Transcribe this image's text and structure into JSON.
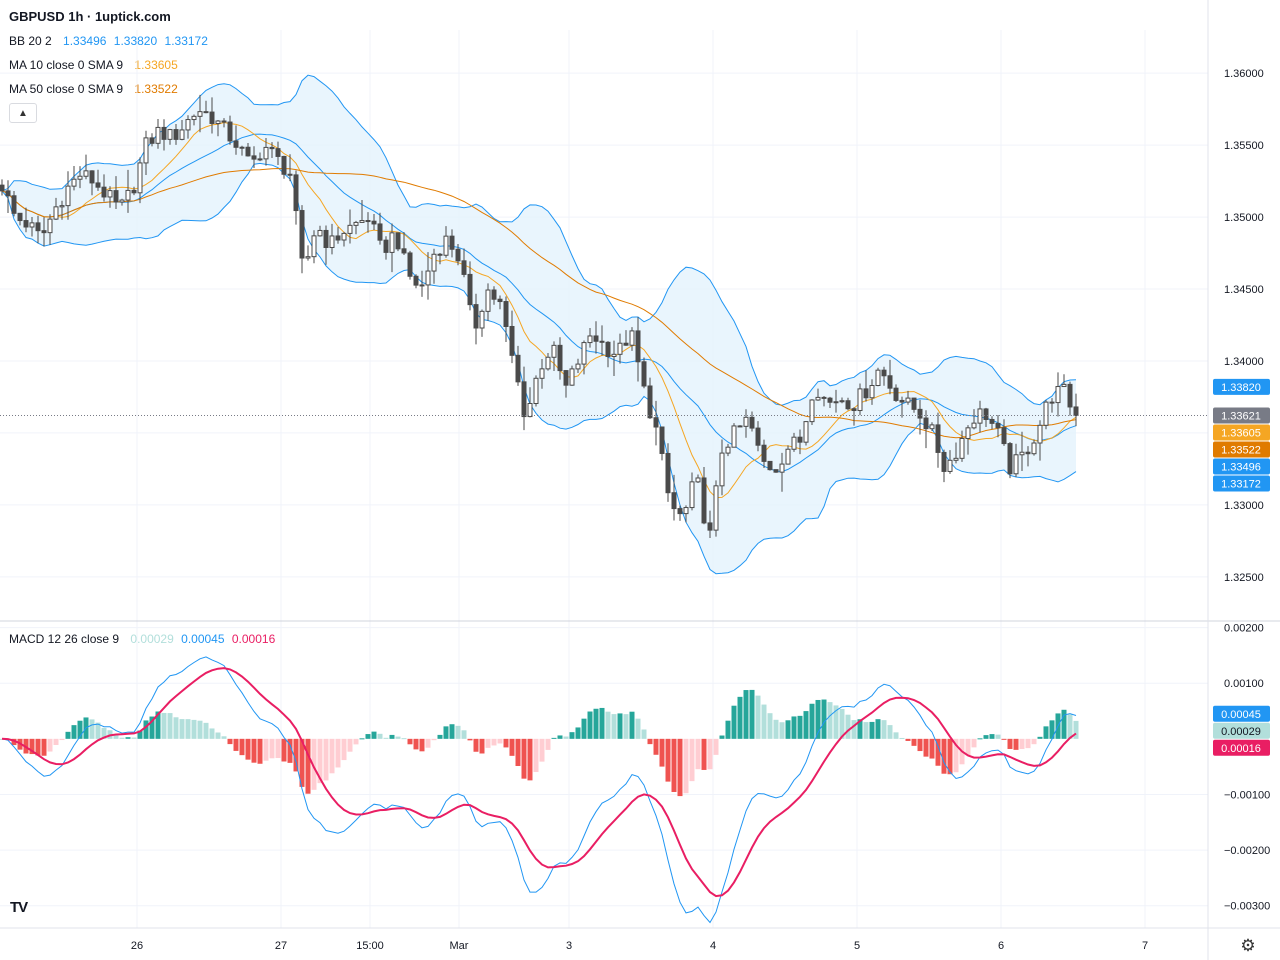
{
  "header": {
    "title": "GBPUSD 1h · 1uptick.com"
  },
  "legends": {
    "bb": {
      "label": "BB 20 2",
      "values": [
        "1.33496",
        "1.33820",
        "1.33172"
      ]
    },
    "ma10": {
      "label": "MA 10 close 0 SMA 9",
      "value": "1.33605"
    },
    "ma50": {
      "label": "MA 50 close 0 SMA 9",
      "value": "1.33522"
    },
    "macd": {
      "label": "MACD 12 26 close 9",
      "values": [
        "0.00029",
        "0.00045",
        "0.00016"
      ]
    }
  },
  "colors": {
    "up": "#26a69a",
    "down": "#ef5350",
    "candle": "#4a4a4a",
    "bb": "#2196f3",
    "bb_fill": "#e3f2fd",
    "ma10": "#f5a623",
    "ma50": "#e07b00",
    "macd_line": "#2196f3",
    "signal_line": "#e91e63",
    "hist_up": "#26a69a",
    "hist_up_light": "#b2dfdb",
    "hist_down": "#ef5350",
    "hist_down_light": "#ffcdd2"
  },
  "icons": {
    "collapse": "chevron-up-icon",
    "settings": "gear-icon",
    "logo": "tradingview-logo"
  },
  "chart_data": {
    "type": "candlestick",
    "symbol": "GBPUSD",
    "timeframe": "1h",
    "price_axis": {
      "ticks": [
        "1.36000",
        "1.35500",
        "1.35000",
        "1.34500",
        "1.34000",
        "1.33500",
        "1.33000",
        "1.32500"
      ],
      "range": [
        1.322,
        1.363
      ]
    },
    "macd_axis": {
      "ticks": [
        "0.00200",
        "0.00100",
        "−0.00100",
        "−0.00200",
        "−0.00300"
      ],
      "range": [
        -0.0034,
        0.0021
      ]
    },
    "x_ticks": [
      "26",
      "27",
      "15:00",
      "Mar",
      "3",
      "4",
      "5",
      "6",
      "7"
    ],
    "price_labels": [
      {
        "value": 1.3382,
        "text": "1.33820",
        "color": "#2196f3"
      },
      {
        "value": 1.33621,
        "text": "1.33621",
        "color": "#787b86"
      },
      {
        "value": 1.33605,
        "text": "1.33605",
        "color": "#f5a623"
      },
      {
        "value": 1.33522,
        "text": "1.33522",
        "color": "#e07b00"
      },
      {
        "value": 1.33496,
        "text": "1.33496",
        "color": "#2196f3"
      },
      {
        "value": 1.33172,
        "text": "1.33172",
        "color": "#2196f3"
      }
    ],
    "macd_labels": [
      {
        "value": 0.00045,
        "text": "0.00045",
        "color": "#2196f3"
      },
      {
        "value": 0.00029,
        "text": "0.00029",
        "color": "#b2dfdb"
      },
      {
        "value": 0.00016,
        "text": "0.00016",
        "color": "#e91e63"
      }
    ],
    "close_path": [
      1.3522,
      1.35,
      1.3495,
      1.3485,
      1.3505,
      1.352,
      1.353,
      1.3525,
      1.3515,
      1.3505,
      1.352,
      1.355,
      1.356,
      1.3555,
      1.3565,
      1.3575,
      1.357,
      1.356,
      1.355,
      1.3535,
      1.355,
      1.354,
      1.353,
      1.346,
      1.3495,
      1.348,
      1.349,
      1.3495,
      1.35,
      1.3475,
      1.349,
      1.346,
      1.345,
      1.3475,
      1.3485,
      1.347,
      1.342,
      1.345,
      1.344,
      1.34,
      1.336,
      1.3395,
      1.341,
      1.338,
      1.34,
      1.342,
      1.341,
      1.3405,
      1.342,
      1.338,
      1.335,
      1.33,
      1.329,
      1.332,
      1.3275,
      1.334,
      1.335,
      1.336,
      1.333,
      1.3325,
      1.334,
      1.3345,
      1.3385,
      1.337,
      1.3375,
      1.337,
      1.338,
      1.3395,
      1.338,
      1.337,
      1.3365,
      1.335,
      1.3325,
      1.334,
      1.336,
      1.3365,
      1.335,
      1.3325,
      1.3335,
      1.335,
      1.3375,
      1.338,
      1.3362
    ]
  }
}
